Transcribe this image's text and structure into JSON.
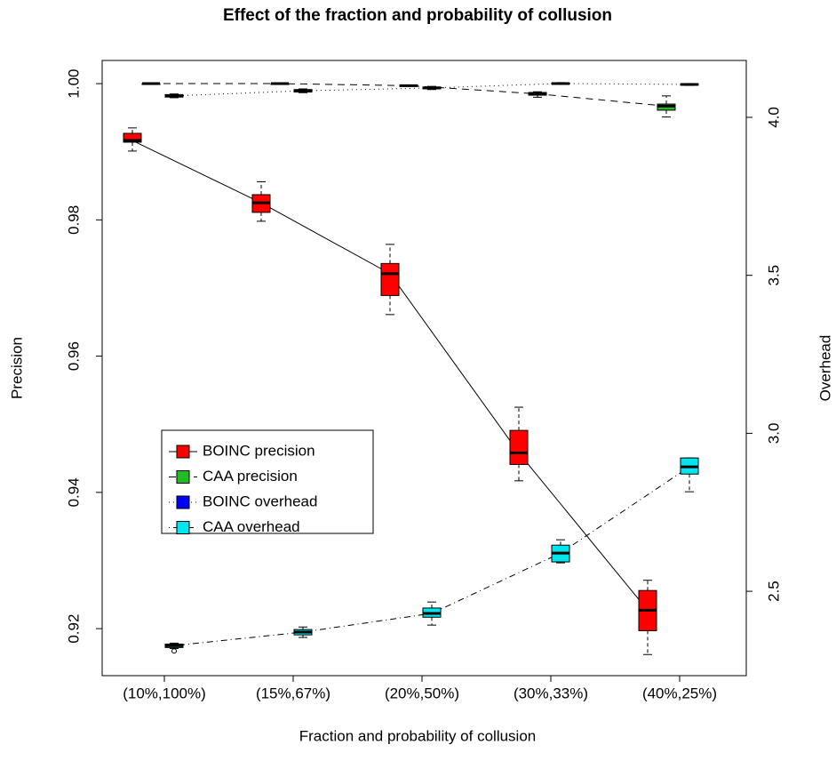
{
  "chart_data": {
    "type": "box",
    "title": "Effect of the fraction and probability of collusion",
    "x_label": "Fraction and probability of collusion",
    "y_label": "Precision",
    "y2_label": "Overhead",
    "categories": [
      "(10%,100%)",
      "(15%,67%)",
      "(20%,50%)",
      "(30%,33%)",
      "(40%,25%)"
    ],
    "ylim": [
      0.9131,
      1.0034
    ],
    "yticks": [
      0.92,
      0.94,
      0.96,
      0.98,
      {
        "value": 1.0,
        "label": "1.00"
      }
    ],
    "y2lim": [
      2.233,
      4.18
    ],
    "y2ticks": [
      2.5,
      {
        "value": 3.0,
        "label": "3.0"
      },
      3.5,
      {
        "value": 4.0,
        "label": "4.0"
      }
    ],
    "legend_position": "left",
    "series": [
      {
        "name": "BOINC precision",
        "color": "#ff0000",
        "line_style": "solid",
        "values": [
          0.99165,
          0.9825,
          0.9721,
          0.9458,
          0.9227
        ],
        "q1": [
          0.9914,
          0.9811,
          0.9689,
          0.9441,
          0.9197
        ],
        "q3": [
          0.9927,
          0.9837,
          0.9736,
          0.9491,
          0.9256
        ],
        "whisker_low": [
          0.9901,
          0.9798,
          0.9661,
          0.9417,
          0.9162
        ],
        "whisker_high": [
          0.9935,
          0.9856,
          0.9764,
          0.9525,
          0.9271
        ]
      },
      {
        "name": "CAA precision",
        "color": "#22bb22",
        "line_style": "dashed",
        "values": [
          1.0,
          1.0,
          0.9997,
          0.9985,
          0.9967
        ],
        "q1": [
          0.9999,
          0.9999,
          0.9996,
          0.9983,
          0.9961
        ],
        "q3": [
          1.0,
          1.0,
          0.9998,
          0.9987,
          0.997
        ],
        "whisker_low": [
          0.9999,
          0.9999,
          0.9996,
          0.998,
          0.9951
        ],
        "whisker_high": [
          1.0,
          1.0,
          0.9998,
          0.9988,
          0.9982
        ]
      },
      {
        "name": "BOINC overhead",
        "color": "#0000ff",
        "line_style": "dotted",
        "axis": "y2",
        "values": [
          4.068,
          4.084,
          4.093,
          4.107,
          4.104
        ],
        "q1": [
          4.064,
          4.08,
          4.09,
          4.105,
          4.102
        ],
        "q3": [
          4.072,
          4.088,
          4.096,
          4.109,
          4.106
        ],
        "whisker_low": [
          4.062,
          4.078,
          4.088,
          4.104,
          4.101
        ],
        "whisker_high": [
          4.074,
          4.09,
          4.098,
          4.11,
          4.107
        ]
      },
      {
        "name": "CAA overhead",
        "color": "#00e5ee",
        "line_style": "dotdash",
        "axis": "y2",
        "values": [
          2.328,
          2.371,
          2.43,
          2.621,
          2.894
        ],
        "q1": [
          2.322,
          2.362,
          2.418,
          2.593,
          2.871
        ],
        "q3": [
          2.333,
          2.379,
          2.447,
          2.646,
          2.922
        ],
        "whisker_low": [
          2.319,
          2.354,
          2.393,
          2.59,
          2.815
        ],
        "whisker_high": [
          2.336,
          2.387,
          2.466,
          2.663,
          2.922
        ],
        "outliers": [
          [
            2.311
          ],
          [],
          [],
          [],
          []
        ]
      }
    ]
  }
}
